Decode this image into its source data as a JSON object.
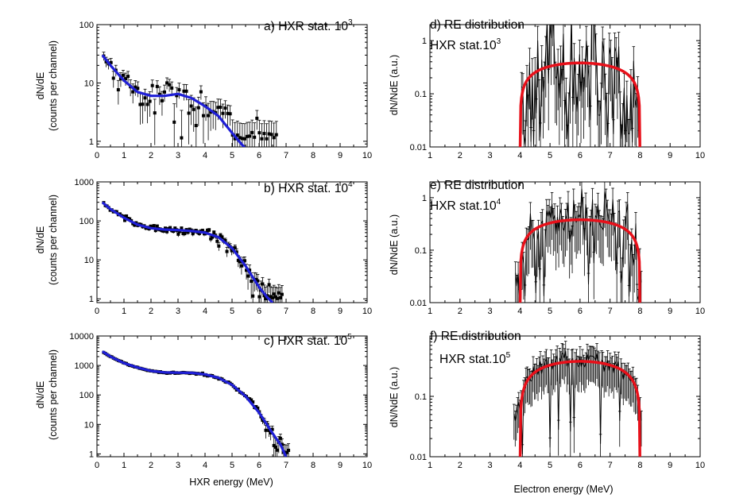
{
  "figure": {
    "left_xlabel": "HXR energy (MeV)",
    "right_xlabel": "Electron energy (MeV)"
  },
  "colors": {
    "fit_left": "#1f1fd6",
    "fit_right": "#e8101a",
    "data": "#000000"
  },
  "chart_data": [
    {
      "id": "a",
      "type": "scatter",
      "title_text": "a) HXR stat. 10",
      "title_sup": "3",
      "xlabel": "",
      "ylabel_line1": "dN/dE",
      "ylabel_line2": "(counts per channel)",
      "xlim": [
        0,
        10
      ],
      "ylim": [
        0.8,
        100
      ],
      "yscale": "log",
      "xticks": [
        "0",
        "1",
        "2",
        "3",
        "4",
        "5",
        "6",
        "7",
        "8",
        "9",
        "10"
      ],
      "yticks": [
        {
          "v": 1,
          "label": "1"
        },
        {
          "v": 10,
          "label": "10"
        },
        {
          "v": 100,
          "label": "100"
        }
      ],
      "stat": 1000,
      "data_x_range": [
        0.25,
        6.7
      ],
      "data_step": 0.09,
      "error_scale": 1.0,
      "series": [
        {
          "kind": "data",
          "style": "points-errorbars"
        },
        {
          "kind": "fit",
          "style": "line",
          "x": [
            0.2,
            0.5,
            1,
            1.5,
            2,
            2.5,
            3,
            3.5,
            4,
            4.5,
            5,
            5.3,
            5.5
          ],
          "y": [
            30,
            20,
            11,
            7,
            6,
            6,
            6.5,
            5.5,
            4,
            2.7,
            1.4,
            0.95,
            0.75
          ]
        }
      ]
    },
    {
      "id": "b",
      "type": "scatter",
      "title_text": "b) HXR stat. 10",
      "title_sup": "4",
      "xlabel": "",
      "ylabel_line1": "dN/dE",
      "ylabel_line2": "(counts per channel)",
      "xlim": [
        0,
        10
      ],
      "ylim": [
        0.8,
        1000
      ],
      "yscale": "log",
      "xticks": [
        "0",
        "1",
        "2",
        "3",
        "4",
        "5",
        "6",
        "7",
        "8",
        "9",
        "10"
      ],
      "yticks": [
        {
          "v": 1,
          "label": "1"
        },
        {
          "v": 10,
          "label": "10"
        },
        {
          "v": 100,
          "label": "100"
        },
        {
          "v": 1000,
          "label": "1000"
        }
      ],
      "stat": 10000,
      "data_x_range": [
        0.25,
        6.9
      ],
      "data_step": 0.06,
      "error_scale": 1.0,
      "series": [
        {
          "kind": "data",
          "style": "points-errorbars"
        },
        {
          "kind": "fit",
          "style": "line",
          "x": [
            0.2,
            0.5,
            1,
            1.5,
            2,
            2.5,
            3,
            3.5,
            4,
            4.5,
            5,
            5.5,
            6,
            6.3,
            6.5
          ],
          "y": [
            300,
            200,
            120,
            80,
            65,
            60,
            58,
            55,
            50,
            38,
            20,
            7,
            2,
            1.1,
            0.8
          ]
        }
      ]
    },
    {
      "id": "c",
      "type": "scatter",
      "title_text": "c) HXR stat. 10",
      "title_sup": "5",
      "xlabel": "",
      "ylabel_line1": "dN/dE",
      "ylabel_line2": "(counts per channel)",
      "xlim": [
        0,
        10
      ],
      "ylim": [
        0.8,
        10000
      ],
      "yscale": "log",
      "xticks": [
        "0",
        "1",
        "2",
        "3",
        "4",
        "5",
        "6",
        "7",
        "8",
        "9",
        "10"
      ],
      "yticks": [
        {
          "v": 1,
          "label": "1"
        },
        {
          "v": 10,
          "label": "10"
        },
        {
          "v": 100,
          "label": "100"
        },
        {
          "v": 1000,
          "label": "1000"
        },
        {
          "v": 10000,
          "label": "10000"
        }
      ],
      "stat": 100000,
      "data_x_range": [
        0.25,
        7.1
      ],
      "data_step": 0.06,
      "error_scale": 1.0,
      "series": [
        {
          "kind": "data",
          "style": "points-errorbars"
        },
        {
          "kind": "fit",
          "style": "line",
          "x": [
            0.2,
            0.5,
            1,
            1.5,
            2,
            2.5,
            3,
            3.5,
            4,
            4.5,
            5,
            5.5,
            6,
            6.5,
            6.8,
            7
          ],
          "y": [
            3000,
            2000,
            1200,
            850,
            650,
            580,
            570,
            560,
            500,
            380,
            220,
            90,
            25,
            5,
            2,
            0.8
          ]
        }
      ]
    },
    {
      "id": "d",
      "type": "line",
      "title_text": "d) RE distribution",
      "title2_text": "HXR stat.10",
      "title2_sup": "3",
      "xlabel": "",
      "ylabel_line1": "dN/NdE (a.u.)",
      "xlim": [
        1,
        10
      ],
      "ylim": [
        0.01,
        2
      ],
      "yscale": "log",
      "xticks": [
        "1",
        "2",
        "3",
        "4",
        "5",
        "6",
        "7",
        "8",
        "9",
        "10"
      ],
      "yticks": [
        {
          "v": 0.01,
          "label": "0.01"
        },
        {
          "v": 0.1,
          "label": "0.1"
        },
        {
          "v": 1,
          "label": "1"
        }
      ],
      "data_x_range": [
        4.05,
        8.0
      ],
      "data_step": 0.045,
      "noise_scale": 1.0,
      "series": [
        {
          "kind": "data",
          "style": "line-errorbars",
          "peaks": [
            {
              "x": 5.0,
              "y": 1.4
            },
            {
              "x": 5.2,
              "y": 1.0
            },
            {
              "x": 5.55,
              "y": 0.8
            },
            {
              "x": 6.5,
              "y": 1.2
            },
            {
              "x": 6.9,
              "y": 0.8
            },
            {
              "x": 7.2,
              "y": 0.6
            }
          ]
        },
        {
          "kind": "fit",
          "style": "semicircle",
          "x0": 4.0,
          "x1": 8.0,
          "ymax": 0.38
        }
      ]
    },
    {
      "id": "e",
      "type": "line",
      "title_text": "e) RE distribution",
      "title2_text": "HXR stat.10",
      "title2_sup": "4",
      "xlabel": "",
      "ylabel_line1": "dN/NdE (a.u.)",
      "xlim": [
        1,
        10
      ],
      "ylim": [
        0.01,
        2
      ],
      "yscale": "log",
      "xticks": [
        "1",
        "2",
        "3",
        "4",
        "5",
        "6",
        "7",
        "8",
        "9",
        "10"
      ],
      "yticks": [
        {
          "v": 0.01,
          "label": "0.01"
        },
        {
          "v": 0.1,
          "label": "0.1"
        },
        {
          "v": 1,
          "label": "1"
        }
      ],
      "data_x_range": [
        3.85,
        8.05
      ],
      "data_step": 0.045,
      "noise_scale": 0.55,
      "series": [
        {
          "kind": "data",
          "style": "line-errorbars",
          "peaks": [
            {
              "x": 5.0,
              "y": 0.75
            },
            {
              "x": 5.9,
              "y": 0.7
            },
            {
              "x": 6.4,
              "y": 0.5
            },
            {
              "x": 7.0,
              "y": 0.42
            }
          ]
        },
        {
          "kind": "fit",
          "style": "semicircle",
          "x0": 4.0,
          "x1": 8.0,
          "ymax": 0.38
        }
      ]
    },
    {
      "id": "f",
      "type": "line",
      "title_text": "f) RE distribution",
      "title2_text": "HXR stat.10",
      "title2_sup": "5",
      "xlabel": "",
      "ylabel_line1": "dN/NdE (a.u.)",
      "xlim": [
        1,
        10
      ],
      "ylim": [
        0.01,
        1
      ],
      "yscale": "log",
      "xticks": [
        "1",
        "2",
        "3",
        "4",
        "5",
        "6",
        "7",
        "8",
        "9",
        "10"
      ],
      "yticks": [
        {
          "v": 0.01,
          "label": "0.01"
        },
        {
          "v": 0.1,
          "label": "0.1"
        }
      ],
      "data_x_range": [
        3.8,
        8.05
      ],
      "data_step": 0.04,
      "noise_scale": 0.18,
      "series": [
        {
          "kind": "data",
          "style": "line-errorbars",
          "peaks": [
            {
              "x": 5.4,
              "y": 0.44
            },
            {
              "x": 6.4,
              "y": 0.46
            }
          ]
        },
        {
          "kind": "fit",
          "style": "semicircle",
          "x0": 4.0,
          "x1": 8.0,
          "ymax": 0.38
        }
      ]
    }
  ]
}
